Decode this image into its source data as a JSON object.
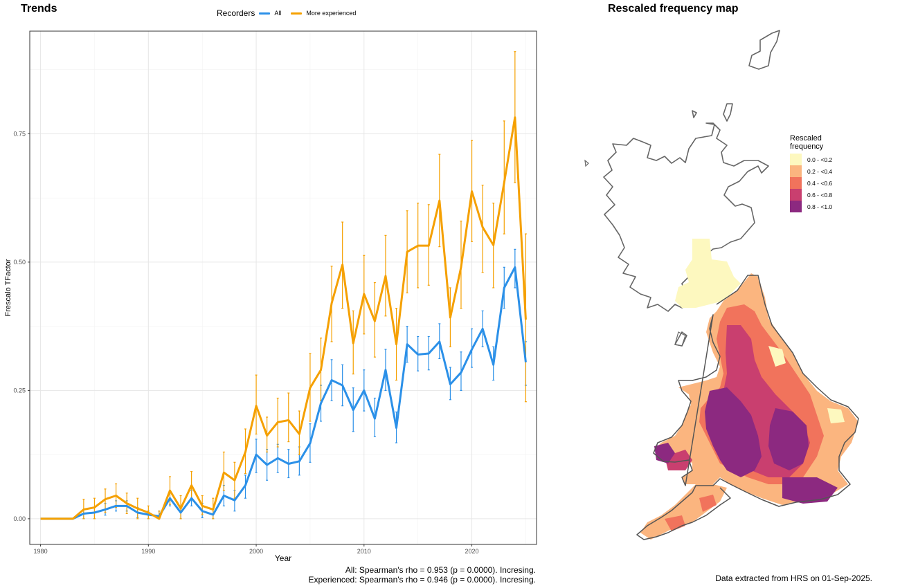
{
  "left_title": "Trends",
  "right_title": "Rescaled frequency map",
  "legend": {
    "title": "Recorders",
    "items": [
      {
        "label": "All",
        "color": "#2b90e8"
      },
      {
        "label": "More experienced",
        "color": "#f5a000"
      }
    ]
  },
  "stats": {
    "line1": "All: Spearman's rho = 0.953 (p = 0.0000). Incresing.",
    "line2": "Experienced: Spearman's rho = 0.946 (p = 0.0000). Incresing."
  },
  "footer": "Data extracted from HRS on 01-Sep-2025.",
  "map_legend": {
    "title_line1": "Rescaled",
    "title_line2": "frequency",
    "items": [
      {
        "label": "0.0 - <0.2",
        "color": "#fdf8bf"
      },
      {
        "label": "0.2 - <0.4",
        "color": "#fbb57f"
      },
      {
        "label": "0.4 - <0.6",
        "color": "#f1735c"
      },
      {
        "label": "0.6 - <0.8",
        "color": "#c93f6f"
      },
      {
        "label": "0.8 - <1.0",
        "color": "#8c2980"
      }
    ]
  },
  "chart_data": {
    "type": "line",
    "xlabel": "Year",
    "ylabel": "Frescalo TFactor",
    "xlim": [
      1979,
      2026
    ],
    "ylim": [
      -0.05,
      0.95
    ],
    "x_ticks": [
      1980,
      1990,
      2000,
      2010,
      2020
    ],
    "y_ticks": [
      0.0,
      0.25,
      0.5,
      0.75
    ],
    "y_tick_labels": [
      "0.00",
      "0.25",
      "0.50",
      "0.75"
    ],
    "x": [
      1980,
      1981,
      1982,
      1983,
      1984,
      1985,
      1986,
      1987,
      1988,
      1989,
      1990,
      1991,
      1992,
      1993,
      1994,
      1995,
      1996,
      1997,
      1998,
      1999,
      2000,
      2001,
      2002,
      2003,
      2004,
      2005,
      2006,
      2007,
      2008,
      2009,
      2010,
      2011,
      2012,
      2013,
      2014,
      2015,
      2016,
      2017,
      2018,
      2019,
      2020,
      2021,
      2022,
      2023,
      2024,
      2025
    ],
    "series": [
      {
        "name": "All",
        "color": "#2b90e8",
        "values": [
          0,
          0,
          0,
          0,
          0.01,
          0.012,
          0.018,
          0.025,
          0.025,
          0.012,
          0.008,
          0.005,
          0.04,
          0.012,
          0.04,
          0.015,
          0.008,
          0.045,
          0.036,
          0.065,
          0.125,
          0.105,
          0.118,
          0.107,
          0.112,
          0.147,
          0.225,
          0.27,
          0.26,
          0.212,
          0.25,
          0.195,
          0.29,
          0.177,
          0.34,
          0.32,
          0.322,
          0.345,
          0.262,
          0.285,
          0.33,
          0.37,
          0.3,
          0.45,
          0.49,
          0.305
        ],
        "err_low": [
          0,
          0,
          0,
          0,
          0,
          0,
          0.007,
          0.015,
          0.015,
          0.002,
          0,
          0,
          0.025,
          0,
          0.025,
          0.002,
          0,
          0.025,
          0.015,
          0.04,
          0.09,
          0.075,
          0.09,
          0.08,
          0.085,
          0.11,
          0.19,
          0.23,
          0.22,
          0.17,
          0.21,
          0.16,
          0.25,
          0.148,
          0.305,
          0.288,
          0.29,
          0.312,
          0.232,
          0.25,
          0.295,
          0.335,
          0.27,
          0.41,
          0.45,
          0.26
        ],
        "err_high": [
          0,
          0,
          0,
          0,
          0.018,
          0.022,
          0.03,
          0.035,
          0.035,
          0.022,
          0.015,
          0.015,
          0.055,
          0.025,
          0.055,
          0.03,
          0.02,
          0.065,
          0.055,
          0.085,
          0.155,
          0.135,
          0.145,
          0.135,
          0.14,
          0.185,
          0.26,
          0.31,
          0.3,
          0.255,
          0.29,
          0.235,
          0.33,
          0.208,
          0.375,
          0.355,
          0.355,
          0.38,
          0.295,
          0.325,
          0.37,
          0.405,
          0.335,
          0.49,
          0.525,
          0.345
        ]
      },
      {
        "name": "More experienced",
        "color": "#f5a000",
        "values": [
          0,
          0,
          0,
          0,
          0.018,
          0.022,
          0.038,
          0.045,
          0.03,
          0.02,
          0.012,
          0,
          0.055,
          0.02,
          0.065,
          0.025,
          0.018,
          0.09,
          0.075,
          0.13,
          0.22,
          0.162,
          0.188,
          0.192,
          0.165,
          0.255,
          0.29,
          0.42,
          0.495,
          0.342,
          0.438,
          0.385,
          0.473,
          0.34,
          0.52,
          0.532,
          0.532,
          0.62,
          0.392,
          0.49,
          0.638,
          0.568,
          0.533,
          0.655,
          0.782,
          0.388
        ],
        "err_low": [
          0,
          0,
          0,
          0,
          0,
          0,
          0.012,
          0.022,
          0.01,
          0,
          0,
          0,
          0.028,
          0,
          0.04,
          0.008,
          0,
          0.055,
          0.04,
          0.088,
          0.165,
          0.13,
          0.14,
          0.15,
          0.125,
          0.19,
          0.23,
          0.345,
          0.41,
          0.282,
          0.36,
          0.315,
          0.395,
          0.27,
          0.44,
          0.45,
          0.455,
          0.53,
          0.335,
          0.41,
          0.54,
          0.48,
          0.45,
          0.555,
          0.655,
          0.228
        ],
        "err_high": [
          0,
          0,
          0,
          0,
          0.038,
          0.04,
          0.058,
          0.068,
          0.05,
          0.04,
          0.025,
          0.015,
          0.082,
          0.045,
          0.092,
          0.045,
          0.04,
          0.13,
          0.11,
          0.175,
          0.28,
          0.198,
          0.235,
          0.245,
          0.21,
          0.322,
          0.352,
          0.492,
          0.578,
          0.405,
          0.513,
          0.46,
          0.552,
          0.41,
          0.6,
          0.615,
          0.612,
          0.71,
          0.45,
          0.58,
          0.737,
          0.65,
          0.615,
          0.775,
          0.91,
          0.555
        ]
      }
    ],
    "grid": true,
    "legend_position": "top"
  }
}
